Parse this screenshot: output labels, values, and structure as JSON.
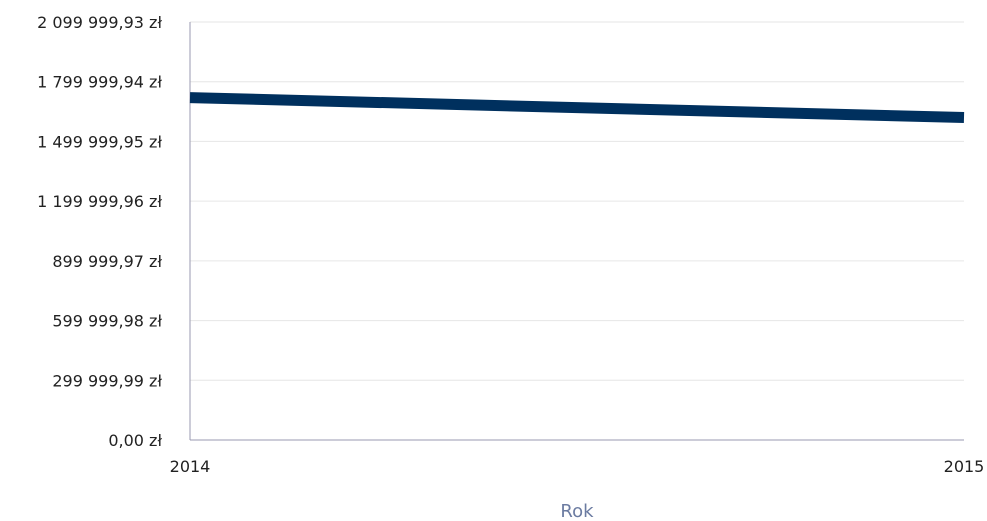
{
  "chart_data": {
    "type": "line",
    "title": "",
    "xlabel": "Rok",
    "ylabel": "",
    "x": [
      "2014",
      "2015"
    ],
    "series": [
      {
        "values": [
          1720000,
          1620000
        ]
      }
    ],
    "ylim": [
      0,
      2099999.93
    ],
    "yticks": [
      {
        "value": 0,
        "label": "0,00 zł"
      },
      {
        "value": 299999.99,
        "label": "299 999,99 zł"
      },
      {
        "value": 599999.98,
        "label": "599 999,98 zł"
      },
      {
        "value": 899999.97,
        "label": "899 999,97 zł"
      },
      {
        "value": 1199999.96,
        "label": "1 199 999,96 zł"
      },
      {
        "value": 1499999.95,
        "label": "1 499 999,95 zł"
      },
      {
        "value": 1799999.94,
        "label": "1 799 999,94 zł"
      },
      {
        "value": 2099999.93,
        "label": "2 099 999,93 zł"
      }
    ],
    "grid": true,
    "legend": "none",
    "colors": {
      "line": "#00305e",
      "grid": "#e6e6e6",
      "axis": "#9a9ab0",
      "xlabel": "#6b7ba1"
    }
  }
}
